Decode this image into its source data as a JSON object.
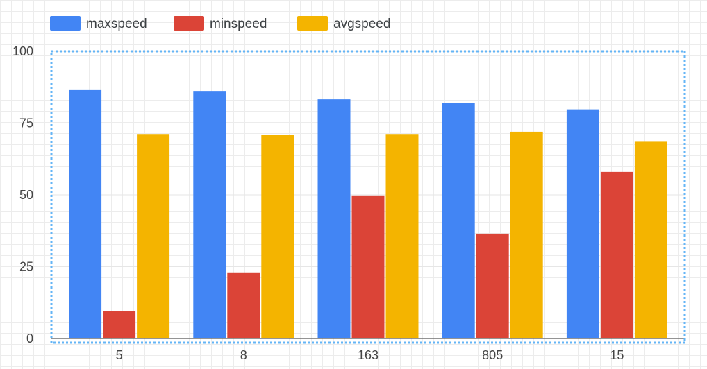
{
  "chart_data": {
    "type": "bar",
    "categories": [
      "5",
      "8",
      "163",
      "805",
      "15"
    ],
    "series": [
      {
        "name": "maxspeed",
        "color": "#4285f4",
        "values": [
          86.5,
          86.2,
          83.3,
          82.0,
          79.8
        ]
      },
      {
        "name": "minspeed",
        "color": "#db4437",
        "values": [
          9.5,
          23.0,
          49.8,
          36.5,
          58.0
        ]
      },
      {
        "name": "avgspeed",
        "color": "#f4b400",
        "values": [
          71.2,
          70.8,
          71.2,
          72.0,
          68.5
        ]
      }
    ],
    "ylim": [
      0,
      100
    ],
    "yticks": [
      "0",
      "25",
      "50",
      "75",
      "100"
    ],
    "title": "",
    "xlabel": "",
    "ylabel": "",
    "grid": true,
    "legend_position": "top-left"
  }
}
